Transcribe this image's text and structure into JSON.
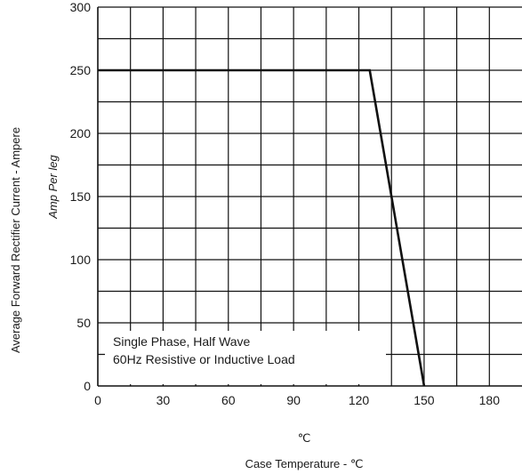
{
  "chart_data": {
    "type": "line",
    "x_ticks": [
      "0",
      "30",
      "60",
      "90",
      "120",
      "150",
      "180"
    ],
    "y_ticks": [
      "0",
      "50",
      "100",
      "150",
      "200",
      "250",
      "300"
    ],
    "xlim": [
      0,
      195
    ],
    "ylim": [
      0,
      300
    ],
    "grid": true,
    "xlabel_unit_above": "℃",
    "xlabel": "Case Temperature -  ℃",
    "ylabel_line1": "Average Forward Rectifier Current - Ampere",
    "ylabel_line2": "Amp  Per leg",
    "annotation": [
      "Single Phase, Half Wave",
      "60Hz Resistive or Inductive Load"
    ],
    "series": [
      {
        "x": [
          0,
          125,
          150
        ],
        "y": [
          250,
          250,
          0
        ]
      }
    ]
  }
}
